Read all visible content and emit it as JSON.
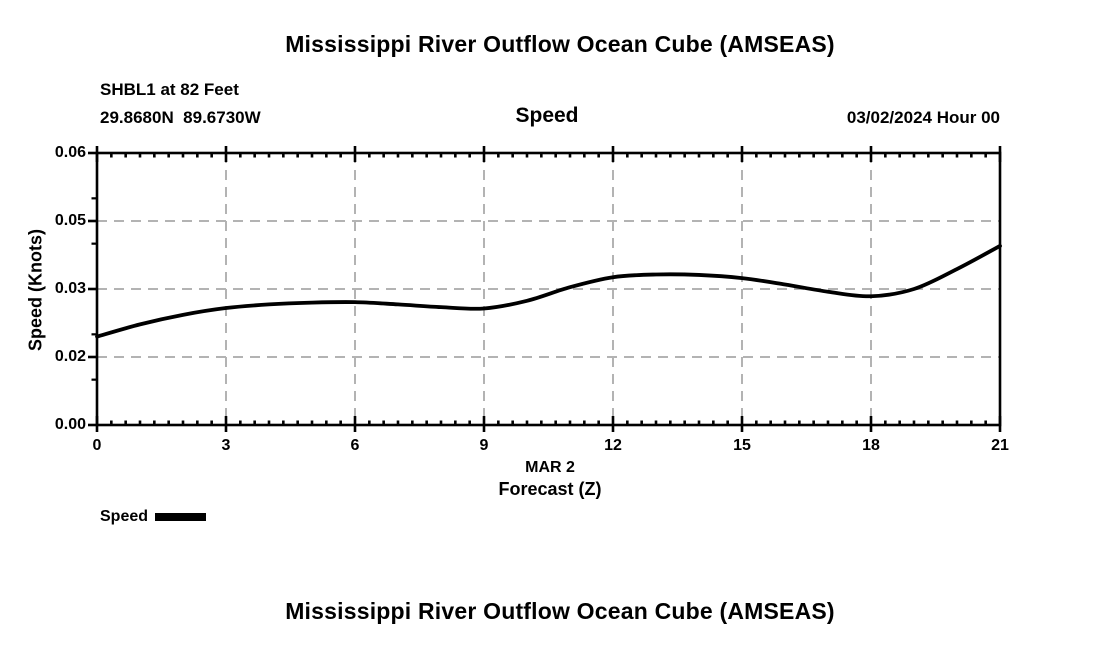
{
  "header": {
    "title": "Mississippi River Outflow Ocean Cube (AMSEAS)",
    "station": "SHBL1 at 82 Feet",
    "coordinates": "29.8680N  89.6730W",
    "chart_title": "Speed",
    "datetime": "03/02/2024 Hour 00"
  },
  "legend": {
    "label": "Speed"
  },
  "footer": {
    "title": "Mississippi River Outflow Ocean Cube (AMSEAS)"
  },
  "chart_data": {
    "type": "line",
    "title": "Speed",
    "xlabel_line1": "MAR 2",
    "xlabel_line2": "Forecast (Z)",
    "ylabel": "Speed (Knots)",
    "xlim": [
      0,
      21
    ],
    "ylim": [
      0,
      0.06
    ],
    "grid": "dashed gray lines at major ticks",
    "legend_position": "bottom-left",
    "line_color": "#000000",
    "grid_color": "#b3b3b3",
    "axis_color": "#000000",
    "xticks": [
      {
        "value": 0,
        "label": "0"
      },
      {
        "value": 3,
        "label": "3"
      },
      {
        "value": 6,
        "label": "6"
      },
      {
        "value": 9,
        "label": "9"
      },
      {
        "value": 12,
        "label": "12"
      },
      {
        "value": 15,
        "label": "15"
      },
      {
        "value": 18,
        "label": "18"
      },
      {
        "value": 21,
        "label": "21"
      }
    ],
    "yticks": [
      {
        "value": 0.0,
        "label": "0.00"
      },
      {
        "value": 0.015,
        "label": "0.02"
      },
      {
        "value": 0.03,
        "label": "0.03"
      },
      {
        "value": 0.045,
        "label": "0.05"
      },
      {
        "value": 0.06,
        "label": "0.06"
      }
    ],
    "y_minor_ticks": [
      0.01,
      0.02,
      0.04,
      0.05
    ],
    "x_minor_tick_step_hours": 0.3333,
    "series": [
      {
        "name": "Speed",
        "x": [
          0,
          1,
          2,
          3,
          4,
          5,
          6,
          7,
          8,
          9,
          10,
          11,
          12,
          13,
          14,
          15,
          16,
          17,
          18,
          19,
          20,
          21
        ],
        "values": [
          0.0195,
          0.0222,
          0.0243,
          0.0258,
          0.0266,
          0.027,
          0.0271,
          0.0266,
          0.026,
          0.0257,
          0.0274,
          0.0304,
          0.0326,
          0.0332,
          0.0331,
          0.0324,
          0.031,
          0.0294,
          0.0284,
          0.03,
          0.0344,
          0.0395
        ]
      }
    ]
  }
}
